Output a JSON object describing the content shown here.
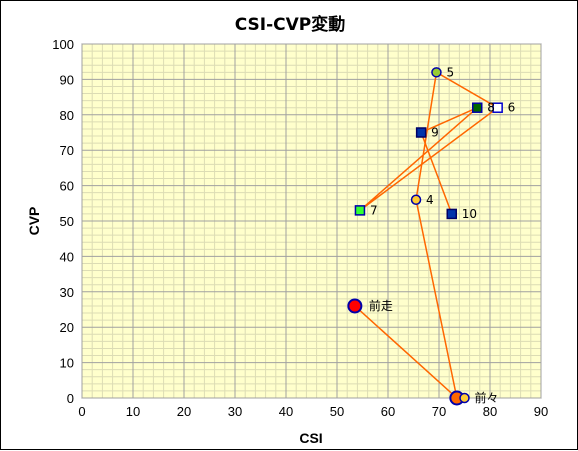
{
  "chart_data": {
    "type": "scatter",
    "title": "CSI-CVP変動",
    "xlabel": "CSI",
    "ylabel": "CVP",
    "xlim": [
      0,
      90
    ],
    "ylim": [
      0,
      100
    ],
    "x_ticks": [
      0,
      10,
      20,
      30,
      40,
      50,
      60,
      70,
      80,
      90
    ],
    "y_ticks": [
      0,
      10,
      20,
      30,
      40,
      50,
      60,
      70,
      80,
      90,
      100
    ],
    "grid": true,
    "line_color": "#ff6600",
    "plot_background": "#ffffcc",
    "points": [
      {
        "label": "前走",
        "x": 53.5,
        "y": 26,
        "marker": "circle-large",
        "fill": "#ff0000",
        "stroke": "#0000aa"
      },
      {
        "label": "前々",
        "x": 75,
        "y": 0,
        "marker": "circle",
        "fill": "#ffcc33",
        "stroke": "#0000aa"
      },
      {
        "label": "4",
        "x": 65.5,
        "y": 56,
        "marker": "circle",
        "fill": "#ffcc33",
        "stroke": "#0000aa"
      },
      {
        "label": "5",
        "x": 69.5,
        "y": 92,
        "marker": "circle",
        "fill": "#99cc33",
        "stroke": "#0000aa"
      },
      {
        "label": "6",
        "x": 81.5,
        "y": 82,
        "marker": "square",
        "fill": "#ffffff",
        "stroke": "#0000cc"
      },
      {
        "label": "7",
        "x": 54.5,
        "y": 53,
        "marker": "square",
        "fill": "#33ff33",
        "stroke": "#0000aa"
      },
      {
        "label": "8",
        "x": 77.5,
        "y": 82,
        "marker": "square",
        "fill": "#006600",
        "stroke": "#0000aa"
      },
      {
        "label": "9",
        "x": 66.5,
        "y": 75,
        "marker": "square",
        "fill": "#0033aa",
        "stroke": "#000066"
      },
      {
        "label": "10",
        "x": 72.5,
        "y": 52,
        "marker": "square",
        "fill": "#0033aa",
        "stroke": "#000066"
      }
    ],
    "extra_markers": [
      {
        "x": 73.5,
        "y": 0,
        "marker": "circle-large",
        "fill": "#ff6600",
        "stroke": "#0000aa"
      }
    ],
    "connector_path": [
      {
        "x": 53.5,
        "y": 26
      },
      {
        "x": 73.5,
        "y": 0
      },
      {
        "x": 65.5,
        "y": 56
      },
      {
        "x": 69.5,
        "y": 92
      },
      {
        "x": 81.5,
        "y": 82
      },
      {
        "x": 54.5,
        "y": 53
      },
      {
        "x": 77.5,
        "y": 82
      },
      {
        "x": 66.5,
        "y": 75
      },
      {
        "x": 72.5,
        "y": 52
      }
    ]
  }
}
